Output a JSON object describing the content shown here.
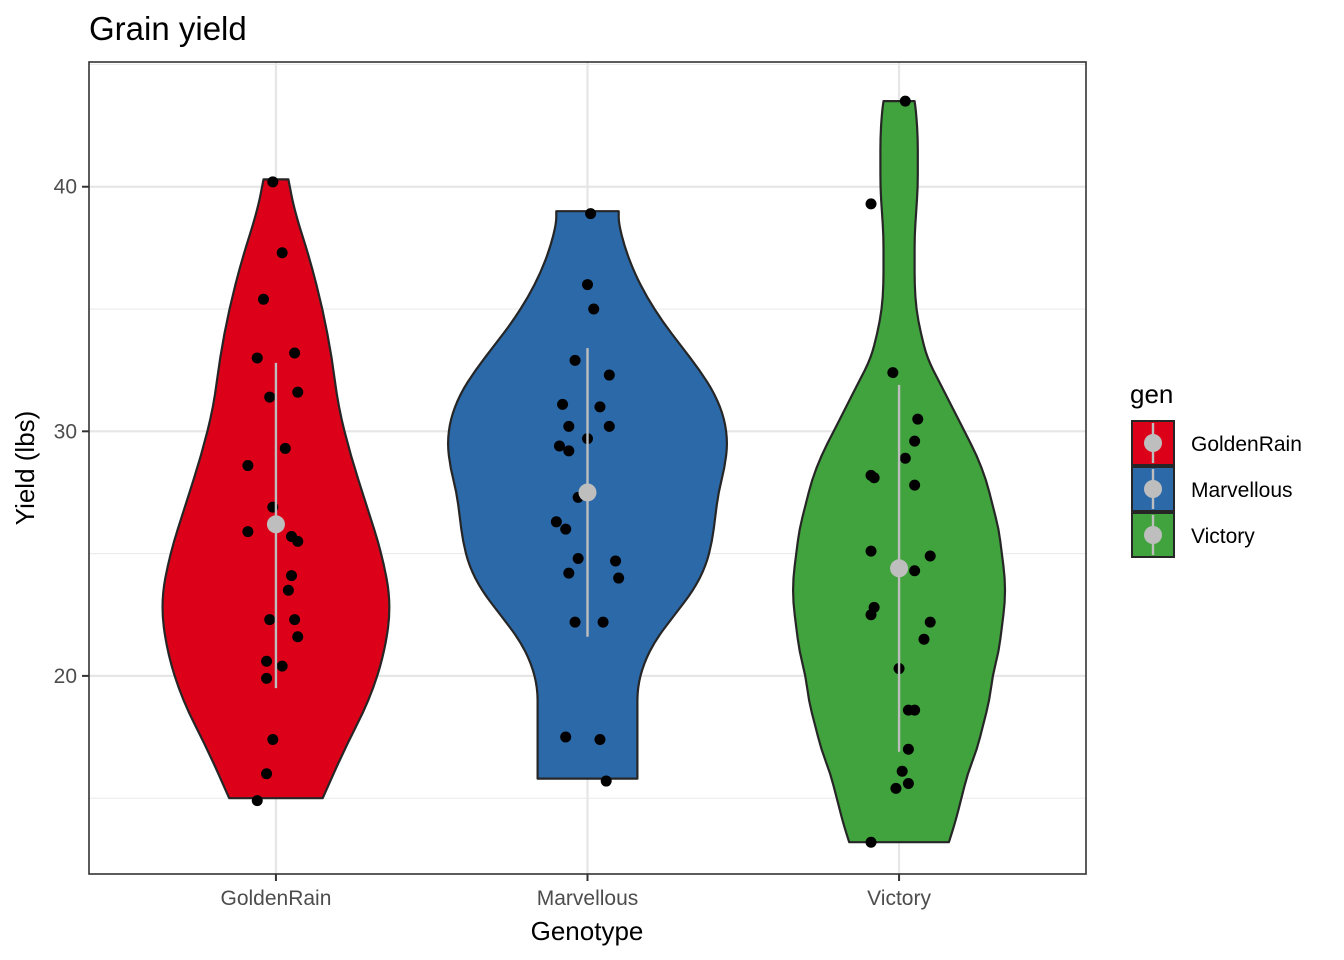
{
  "chart_data": {
    "type": "violin",
    "title": "Grain yield",
    "xlabel": "Genotype",
    "ylabel": "Yield (lbs)",
    "categories": [
      "GoldenRain",
      "Marvellous",
      "Victory"
    ],
    "ylim": [
      11.9,
      45.1
    ],
    "yticks": [
      20,
      30,
      40
    ],
    "grid": true,
    "legend": {
      "title": "gen",
      "position": "right",
      "entries": [
        "GoldenRain",
        "Marvellous",
        "Victory"
      ]
    },
    "colors": {
      "GoldenRain": "#dc0019",
      "Marvellous": "#2c69a9",
      "Victory": "#41a33d",
      "points": "#000000",
      "summary": "#bebebe"
    },
    "series": [
      {
        "name": "GoldenRain",
        "points": [
          {
            "x": -0.01,
            "y": 40.2
          },
          {
            "x": 0.02,
            "y": 37.3
          },
          {
            "x": -0.04,
            "y": 35.4
          },
          {
            "x": 0.06,
            "y": 33.2
          },
          {
            "x": -0.06,
            "y": 33.0
          },
          {
            "x": 0.07,
            "y": 31.6
          },
          {
            "x": -0.02,
            "y": 31.4
          },
          {
            "x": 0.03,
            "y": 29.3
          },
          {
            "x": -0.09,
            "y": 28.6
          },
          {
            "x": -0.01,
            "y": 26.9
          },
          {
            "x": -0.09,
            "y": 25.9
          },
          {
            "x": 0.05,
            "y": 25.7
          },
          {
            "x": 0.07,
            "y": 25.5
          },
          {
            "x": 0.05,
            "y": 24.1
          },
          {
            "x": 0.04,
            "y": 23.5
          },
          {
            "x": -0.02,
            "y": 22.3
          },
          {
            "x": 0.06,
            "y": 22.3
          },
          {
            "x": 0.07,
            "y": 21.6
          },
          {
            "x": -0.03,
            "y": 20.6
          },
          {
            "x": 0.02,
            "y": 20.4
          },
          {
            "x": -0.03,
            "y": 19.9
          },
          {
            "x": -0.01,
            "y": 17.4
          },
          {
            "x": -0.03,
            "y": 16.0
          },
          {
            "x": -0.06,
            "y": 14.9
          }
        ],
        "violin": {
          "ymin": 15.0,
          "ymax": 40.3,
          "max_halfwidth": 0.37,
          "profile": [
            [
              15.0,
              0.15
            ],
            [
              17.0,
              0.22
            ],
            [
              19.0,
              0.3
            ],
            [
              21.0,
              0.35
            ],
            [
              23.0,
              0.37
            ],
            [
              25.0,
              0.34
            ],
            [
              27.0,
              0.29
            ],
            [
              29.0,
              0.24
            ],
            [
              31.0,
              0.2
            ],
            [
              33.0,
              0.18
            ],
            [
              35.0,
              0.15
            ],
            [
              37.0,
              0.11
            ],
            [
              39.0,
              0.06
            ],
            [
              40.3,
              0.04
            ]
          ]
        },
        "summary": {
          "mean": 26.2,
          "lower": 19.5,
          "upper": 32.8
        }
      },
      {
        "name": "Marvellous",
        "points": [
          {
            "x": 0.01,
            "y": 38.9
          },
          {
            "x": 0.0,
            "y": 36.0
          },
          {
            "x": 0.02,
            "y": 35.0
          },
          {
            "x": -0.04,
            "y": 32.9
          },
          {
            "x": 0.07,
            "y": 32.3
          },
          {
            "x": -0.08,
            "y": 31.1
          },
          {
            "x": 0.04,
            "y": 31.0
          },
          {
            "x": -0.06,
            "y": 30.2
          },
          {
            "x": 0.07,
            "y": 30.2
          },
          {
            "x": 0.0,
            "y": 29.7
          },
          {
            "x": -0.09,
            "y": 29.4
          },
          {
            "x": -0.06,
            "y": 29.2
          },
          {
            "x": -0.03,
            "y": 27.3
          },
          {
            "x": -0.1,
            "y": 26.3
          },
          {
            "x": -0.07,
            "y": 26.0
          },
          {
            "x": -0.03,
            "y": 24.8
          },
          {
            "x": 0.09,
            "y": 24.7
          },
          {
            "x": -0.06,
            "y": 24.2
          },
          {
            "x": 0.1,
            "y": 24.0
          },
          {
            "x": -0.04,
            "y": 22.2
          },
          {
            "x": 0.05,
            "y": 22.2
          },
          {
            "x": -0.07,
            "y": 17.5
          },
          {
            "x": 0.04,
            "y": 17.4
          },
          {
            "x": 0.06,
            "y": 15.7
          }
        ],
        "violin": {
          "ymin": 15.8,
          "ymax": 39.0,
          "max_halfwidth": 0.45,
          "profile": [
            [
              15.8,
              0.16
            ],
            [
              16.5,
              0.16
            ],
            [
              17.5,
              0.16
            ],
            [
              18.5,
              0.16
            ],
            [
              19.5,
              0.16
            ],
            [
              20.5,
              0.18
            ],
            [
              21.5,
              0.22
            ],
            [
              22.5,
              0.28
            ],
            [
              23.5,
              0.34
            ],
            [
              24.5,
              0.38
            ],
            [
              25.5,
              0.4
            ],
            [
              26.5,
              0.41
            ],
            [
              27.5,
              0.42
            ],
            [
              28.5,
              0.44
            ],
            [
              29.5,
              0.45
            ],
            [
              30.5,
              0.44
            ],
            [
              31.5,
              0.41
            ],
            [
              32.5,
              0.36
            ],
            [
              33.5,
              0.3
            ],
            [
              34.5,
              0.24
            ],
            [
              35.5,
              0.19
            ],
            [
              36.5,
              0.15
            ],
            [
              37.5,
              0.12
            ],
            [
              38.5,
              0.1
            ],
            [
              39.0,
              0.1
            ]
          ]
        },
        "summary": {
          "mean": 27.5,
          "lower": 21.6,
          "upper": 33.4
        }
      },
      {
        "name": "Victory",
        "points": [
          {
            "x": 0.02,
            "y": 43.5
          },
          {
            "x": -0.09,
            "y": 39.3
          },
          {
            "x": -0.02,
            "y": 32.4
          },
          {
            "x": 0.06,
            "y": 30.5
          },
          {
            "x": 0.05,
            "y": 29.6
          },
          {
            "x": 0.02,
            "y": 28.9
          },
          {
            "x": -0.09,
            "y": 28.2
          },
          {
            "x": -0.08,
            "y": 28.1
          },
          {
            "x": 0.05,
            "y": 27.8
          },
          {
            "x": -0.09,
            "y": 25.1
          },
          {
            "x": 0.1,
            "y": 24.9
          },
          {
            "x": 0.05,
            "y": 24.3
          },
          {
            "x": -0.08,
            "y": 22.8
          },
          {
            "x": -0.09,
            "y": 22.5
          },
          {
            "x": 0.1,
            "y": 22.2
          },
          {
            "x": 0.08,
            "y": 21.5
          },
          {
            "x": 0.0,
            "y": 20.3
          },
          {
            "x": 0.03,
            "y": 18.6
          },
          {
            "x": 0.05,
            "y": 18.6
          },
          {
            "x": 0.03,
            "y": 17.0
          },
          {
            "x": 0.01,
            "y": 16.1
          },
          {
            "x": 0.03,
            "y": 15.6
          },
          {
            "x": -0.01,
            "y": 15.4
          },
          {
            "x": -0.09,
            "y": 13.2
          }
        ],
        "violin": {
          "ymin": 13.2,
          "ymax": 43.5,
          "max_halfwidth": 0.34,
          "profile": [
            [
              13.2,
              0.16
            ],
            [
              14.0,
              0.18
            ],
            [
              15.0,
              0.2
            ],
            [
              16.0,
              0.22
            ],
            [
              17.0,
              0.25
            ],
            [
              18.0,
              0.27
            ],
            [
              19.0,
              0.29
            ],
            [
              20.0,
              0.3
            ],
            [
              21.0,
              0.32
            ],
            [
              22.0,
              0.33
            ],
            [
              23.0,
              0.34
            ],
            [
              24.0,
              0.34
            ],
            [
              25.0,
              0.33
            ],
            [
              26.0,
              0.32
            ],
            [
              27.0,
              0.3
            ],
            [
              28.0,
              0.28
            ],
            [
              29.0,
              0.25
            ],
            [
              30.0,
              0.21
            ],
            [
              31.0,
              0.17
            ],
            [
              32.0,
              0.13
            ],
            [
              33.0,
              0.09
            ],
            [
              34.0,
              0.07
            ],
            [
              35.0,
              0.055
            ],
            [
              36.0,
              0.05
            ],
            [
              37.0,
              0.05
            ],
            [
              38.0,
              0.05
            ],
            [
              39.0,
              0.055
            ],
            [
              40.0,
              0.06
            ],
            [
              41.0,
              0.06
            ],
            [
              42.0,
              0.06
            ],
            [
              43.0,
              0.055
            ],
            [
              43.5,
              0.05
            ]
          ]
        },
        "summary": {
          "mean": 24.4,
          "lower": 16.9,
          "upper": 31.9
        }
      }
    ]
  }
}
